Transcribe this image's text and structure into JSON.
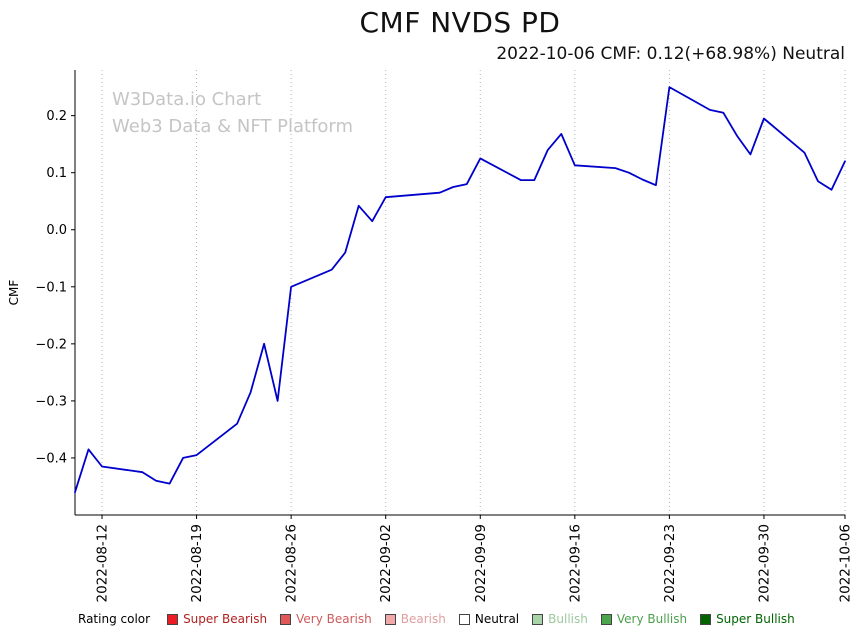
{
  "watermark": {
    "line1": "W3Data.io Chart",
    "line2": "Web3 Data & NFT Platform"
  },
  "legend": {
    "label": "Rating color",
    "items": [
      {
        "label": "Super Bearish",
        "swatch": "#ed1c24",
        "text_color": "#b22222"
      },
      {
        "label": "Very Bearish",
        "swatch": "#e05858",
        "text_color": "#cd5c5c"
      },
      {
        "label": "Bearish",
        "swatch": "#f0a8a8",
        "text_color": "#dfa0a0"
      },
      {
        "label": "Neutral",
        "swatch": "#ffffff",
        "text_color": "#000000"
      },
      {
        "label": "Bullish",
        "swatch": "#a8d4a8",
        "text_color": "#9ec89e"
      },
      {
        "label": "Very Bullish",
        "swatch": "#4ca64c",
        "text_color": "#4ca04c"
      },
      {
        "label": "Super Bullish",
        "swatch": "#006400",
        "text_color": "#006400"
      }
    ]
  },
  "chart_data": {
    "type": "line",
    "title": "CMF NVDS PD",
    "subtitle": "2022-10-06 CMF: 0.12(+68.98%) Neutral",
    "ylabel": "CMF",
    "xlabel": "",
    "series_name": "CMF",
    "series_color": "#0000cc",
    "grid": "vertical-dotted",
    "ylim": [
      -0.5,
      0.28
    ],
    "x": [
      "2022-08-10",
      "2022-08-11",
      "2022-08-12",
      "2022-08-15",
      "2022-08-16",
      "2022-08-17",
      "2022-08-18",
      "2022-08-19",
      "2022-08-22",
      "2022-08-23",
      "2022-08-24",
      "2022-08-25",
      "2022-08-26",
      "2022-08-29",
      "2022-08-30",
      "2022-08-31",
      "2022-09-01",
      "2022-09-02",
      "2022-09-06",
      "2022-09-07",
      "2022-09-08",
      "2022-09-09",
      "2022-09-12",
      "2022-09-13",
      "2022-09-14",
      "2022-09-15",
      "2022-09-16",
      "2022-09-19",
      "2022-09-20",
      "2022-09-21",
      "2022-09-22",
      "2022-09-23",
      "2022-09-26",
      "2022-09-27",
      "2022-09-28",
      "2022-09-29",
      "2022-09-30",
      "2022-10-03",
      "2022-10-04",
      "2022-10-05",
      "2022-10-06"
    ],
    "y": [
      -0.46,
      -0.385,
      -0.415,
      -0.425,
      -0.44,
      -0.445,
      -0.4,
      -0.395,
      -0.34,
      -0.285,
      -0.2,
      -0.3,
      -0.1,
      -0.07,
      -0.04,
      0.042,
      0.015,
      0.057,
      0.065,
      0.075,
      0.08,
      0.125,
      0.087,
      0.087,
      0.14,
      0.168,
      0.113,
      0.108,
      0.1,
      0.088,
      0.078,
      0.25,
      0.21,
      0.205,
      0.165,
      0.132,
      0.195,
      0.135,
      0.085,
      0.07,
      0.12
    ],
    "x_ticks": [
      "2022-08-12",
      "2022-08-19",
      "2022-08-26",
      "2022-09-02",
      "2022-09-09",
      "2022-09-16",
      "2022-09-23",
      "2022-09-30",
      "2022-10-06"
    ],
    "y_ticks": [
      0.2,
      0.1,
      0.0,
      -0.1,
      -0.2,
      -0.3,
      -0.4
    ],
    "y_tick_labels": [
      "0.2",
      "0.1",
      "0.0",
      "−0.1",
      "−0.2",
      "−0.3",
      "−0.4"
    ]
  }
}
